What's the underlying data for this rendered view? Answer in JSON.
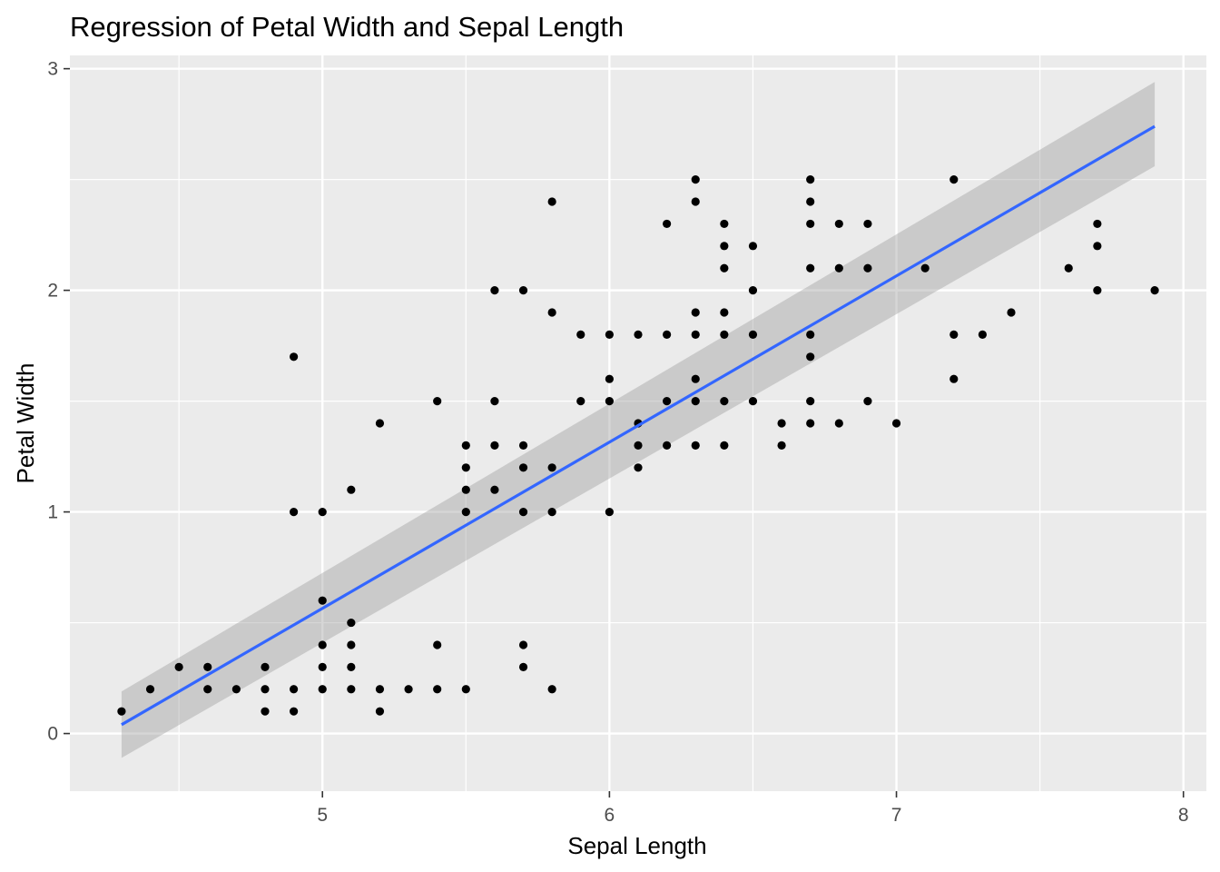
{
  "chart_data": {
    "type": "scatter",
    "title": "Regression of Petal Width and Sepal Length",
    "xlabel": "Sepal Length",
    "ylabel": "Petal Width",
    "xlim": [
      4.12,
      8.08
    ],
    "ylim": [
      -0.26,
      3.06
    ],
    "xticks": [
      5,
      6,
      7,
      8
    ],
    "xtick_labels": [
      "5",
      "6",
      "7",
      "8"
    ],
    "yticks": [
      0,
      1,
      2,
      3
    ],
    "ytick_labels": [
      "0",
      "1",
      "2",
      "3"
    ],
    "grid": true,
    "legend": "none",
    "colors": {
      "panel": "#ebebeb",
      "grid": "#ffffff",
      "points": "#000000",
      "line": "#3366ff",
      "band": "#999999"
    },
    "points": [
      [
        4.3,
        0.1
      ],
      [
        4.4,
        0.2
      ],
      [
        4.5,
        0.3
      ],
      [
        4.6,
        0.3
      ],
      [
        4.6,
        0.2
      ],
      [
        4.7,
        0.2
      ],
      [
        4.8,
        0.3
      ],
      [
        4.8,
        0.2
      ],
      [
        4.8,
        0.1
      ],
      [
        4.9,
        1.7
      ],
      [
        4.9,
        1.0
      ],
      [
        4.9,
        0.2
      ],
      [
        4.9,
        0.1
      ],
      [
        5.0,
        1.0
      ],
      [
        5.0,
        0.6
      ],
      [
        5.0,
        0.4
      ],
      [
        5.0,
        0.3
      ],
      [
        5.0,
        0.2
      ],
      [
        5.1,
        1.1
      ],
      [
        5.1,
        0.5
      ],
      [
        5.1,
        0.4
      ],
      [
        5.1,
        0.3
      ],
      [
        5.1,
        0.2
      ],
      [
        5.2,
        1.4
      ],
      [
        5.2,
        0.2
      ],
      [
        5.2,
        0.1
      ],
      [
        5.3,
        0.2
      ],
      [
        5.4,
        1.5
      ],
      [
        5.4,
        0.4
      ],
      [
        5.4,
        0.2
      ],
      [
        5.5,
        1.3
      ],
      [
        5.5,
        1.2
      ],
      [
        5.5,
        1.1
      ],
      [
        5.5,
        1.0
      ],
      [
        5.5,
        0.2
      ],
      [
        5.6,
        2.0
      ],
      [
        5.6,
        1.5
      ],
      [
        5.6,
        1.3
      ],
      [
        5.6,
        1.1
      ],
      [
        5.7,
        2.0
      ],
      [
        5.7,
        1.3
      ],
      [
        5.7,
        1.2
      ],
      [
        5.7,
        1.0
      ],
      [
        5.7,
        0.4
      ],
      [
        5.7,
        0.3
      ],
      [
        5.8,
        2.4
      ],
      [
        5.8,
        1.9
      ],
      [
        5.8,
        1.2
      ],
      [
        5.8,
        1.0
      ],
      [
        5.8,
        0.2
      ],
      [
        5.9,
        1.8
      ],
      [
        5.9,
        1.5
      ],
      [
        6.0,
        1.8
      ],
      [
        6.0,
        1.6
      ],
      [
        6.0,
        1.5
      ],
      [
        6.0,
        1.0
      ],
      [
        6.1,
        1.8
      ],
      [
        6.1,
        1.4
      ],
      [
        6.1,
        1.3
      ],
      [
        6.1,
        1.2
      ],
      [
        6.2,
        2.3
      ],
      [
        6.2,
        1.8
      ],
      [
        6.2,
        1.5
      ],
      [
        6.2,
        1.3
      ],
      [
        6.3,
        2.5
      ],
      [
        6.3,
        2.4
      ],
      [
        6.3,
        1.9
      ],
      [
        6.3,
        1.8
      ],
      [
        6.3,
        1.6
      ],
      [
        6.3,
        1.5
      ],
      [
        6.3,
        1.3
      ],
      [
        6.4,
        2.3
      ],
      [
        6.4,
        2.2
      ],
      [
        6.4,
        2.1
      ],
      [
        6.4,
        1.9
      ],
      [
        6.4,
        1.8
      ],
      [
        6.4,
        1.5
      ],
      [
        6.4,
        1.3
      ],
      [
        6.5,
        2.2
      ],
      [
        6.5,
        2.0
      ],
      [
        6.5,
        1.8
      ],
      [
        6.5,
        1.5
      ],
      [
        6.6,
        1.4
      ],
      [
        6.6,
        1.3
      ],
      [
        6.7,
        2.5
      ],
      [
        6.7,
        2.4
      ],
      [
        6.7,
        2.3
      ],
      [
        6.7,
        2.1
      ],
      [
        6.7,
        1.8
      ],
      [
        6.7,
        1.7
      ],
      [
        6.7,
        1.5
      ],
      [
        6.7,
        1.4
      ],
      [
        6.8,
        2.3
      ],
      [
        6.8,
        2.1
      ],
      [
        6.8,
        1.4
      ],
      [
        6.9,
        2.3
      ],
      [
        6.9,
        2.1
      ],
      [
        6.9,
        1.5
      ],
      [
        7.0,
        1.4
      ],
      [
        7.1,
        2.1
      ],
      [
        7.2,
        2.5
      ],
      [
        7.2,
        1.8
      ],
      [
        7.2,
        1.6
      ],
      [
        7.3,
        1.8
      ],
      [
        7.4,
        1.9
      ],
      [
        7.6,
        2.1
      ],
      [
        7.7,
        2.3
      ],
      [
        7.7,
        2.2
      ],
      [
        7.7,
        2.0
      ],
      [
        7.9,
        2.0
      ]
    ],
    "regression": {
      "x_start": 4.3,
      "x_end": 7.9,
      "y_start": 0.04,
      "y_end": 2.74,
      "ci_lower_start": -0.11,
      "ci_upper_start": 0.19,
      "ci_lower_end": 2.56,
      "ci_upper_end": 2.94
    }
  }
}
